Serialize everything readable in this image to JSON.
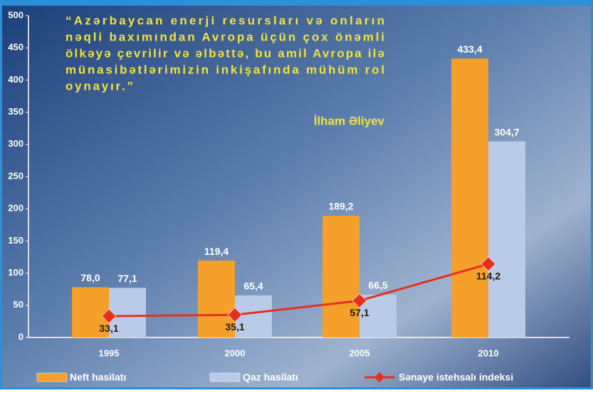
{
  "chart_data": {
    "type": "bar",
    "annotations": [
      "“Azərbaycan enerji resursları və onların",
      "nəqli baxımından Avropa üçün çox önəmli",
      "ölkəyə çevrilir və əlbəttə, bu amil Avropa ilə",
      "münasibətlərimizin inkişafında mühüm rol",
      "oynayır.”"
    ],
    "author": "İlham Əliyev",
    "categories": [
      "1995",
      "2000",
      "2005",
      "2010"
    ],
    "series": [
      {
        "name": "Neft hasilatı",
        "color": "#f5a02a",
        "values": [
          78.0,
          119.4,
          189.2,
          433.4
        ],
        "value_labels": [
          "78,0",
          "119,4",
          "189,2",
          "433,4"
        ]
      },
      {
        "name": "Qaz hasilatı",
        "color": "#b9cbe8",
        "values": [
          77.1,
          65.4,
          66.5,
          304.7
        ],
        "value_labels": [
          "77,1",
          "65,4",
          "66,5",
          "304,7"
        ]
      },
      {
        "name": "Sənaye istehsalı indeksi",
        "type": "line",
        "color": "#e2321e",
        "values": [
          33.1,
          35.1,
          57.1,
          114.2
        ],
        "value_labels": [
          "33,1",
          "35,1",
          "57,1",
          "114,2"
        ]
      }
    ],
    "ylim": [
      0,
      500
    ],
    "yticks": [
      0,
      50,
      100,
      150,
      200,
      250,
      300,
      350,
      400,
      450,
      500
    ]
  }
}
